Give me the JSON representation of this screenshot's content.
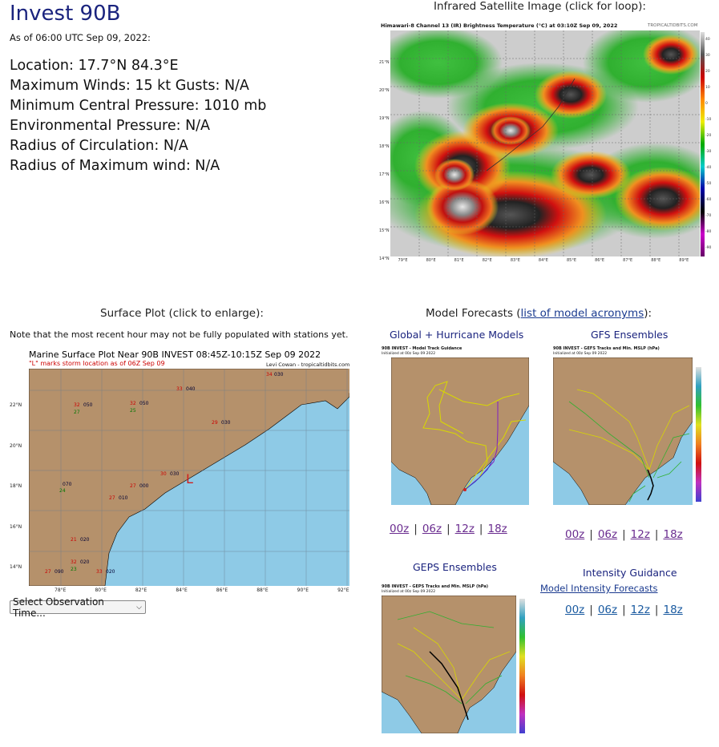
{
  "storm": {
    "title": "Invest 90B",
    "as_of": "As of 06:00 UTC Sep 09, 2022:",
    "location": "Location: 17.7°N 84.3°E",
    "winds": "Maximum Winds: 15 kt  Gusts: N/A",
    "pressure": "Minimum Central Pressure: 1010 mb",
    "env_pressure": "Environmental Pressure: N/A",
    "radius_circ": "Radius of Circulation: N/A",
    "radius_max": "Radius of Maximum wind: N/A"
  },
  "satellite": {
    "caption": "Infrared Satellite Image (click for loop):",
    "header": "Himawari-8 Channel 13 (IR) Brightness Temperature (°C) at 03:10Z Sep 09, 2022",
    "credit": "TROPICALTIDBITS.COM",
    "lat_labels": [
      "21°N",
      "20°N",
      "19°N",
      "18°N",
      "17°N",
      "16°N",
      "15°N",
      "14°N"
    ],
    "lon_labels": [
      "79°E",
      "80°E",
      "81°E",
      "82°E",
      "83°E",
      "84°E",
      "85°E",
      "86°E",
      "87°E",
      "88°E",
      "89°E"
    ],
    "scale_labels": [
      "40",
      "30",
      "20",
      "10",
      "0",
      "-10",
      "-20",
      "-30",
      "-40",
      "-50",
      "-60",
      "-70",
      "-80",
      "-90"
    ]
  },
  "surface": {
    "caption": "Surface Plot (click to enlarge):",
    "note": "Note that the most recent hour may not be fully populated with stations yet.",
    "plot_title": "Marine Surface Plot Near 90B INVEST 08:45Z-10:15Z Sep 09 2022",
    "subtitle": "\"L\" marks storm location as of 06Z Sep 09",
    "credit": "Levi Cowan - tropicaltidbits.com",
    "storm_marker": "L",
    "lat_labels": [
      "22°N",
      "20°N",
      "18°N",
      "16°N",
      "14°N"
    ],
    "lon_labels": [
      "78°E",
      "80°E",
      "82°E",
      "84°E",
      "86°E",
      "88°E",
      "90°E",
      "92°E"
    ],
    "select_label": "Select Observation Time..."
  },
  "models": {
    "caption_prefix": "Model Forecasts (",
    "caption_link": "list of model acronyms",
    "caption_suffix": "):",
    "global_title": "Global + Hurricane Models",
    "global_plot_title": "90B INVEST - Model Track Guidance",
    "global_init": "Initialized at 00z Sep 09 2022",
    "gefs_title": "GFS Ensembles",
    "gefs_plot_title": "90B INVEST - GEFS Tracks and Min. MSLP (hPa)",
    "gefs_init": "Initialized at 00z Sep 09 2022",
    "geps_title": "GEPS Ensembles",
    "geps_plot_title": "90B INVEST - GEPS Tracks and Min. MSLP (hPa)",
    "geps_init": "Initialized at 00z Sep 09 2022",
    "intensity_title": "Intensity Guidance",
    "intensity_link": "Model Intensity Forecasts",
    "runs": [
      "00z",
      "06z",
      "12z",
      "18z"
    ],
    "mslp_scale": [
      "1010",
      "1005",
      "1000",
      "990",
      "980",
      "970",
      "960",
      "950",
      "940",
      "930"
    ]
  }
}
